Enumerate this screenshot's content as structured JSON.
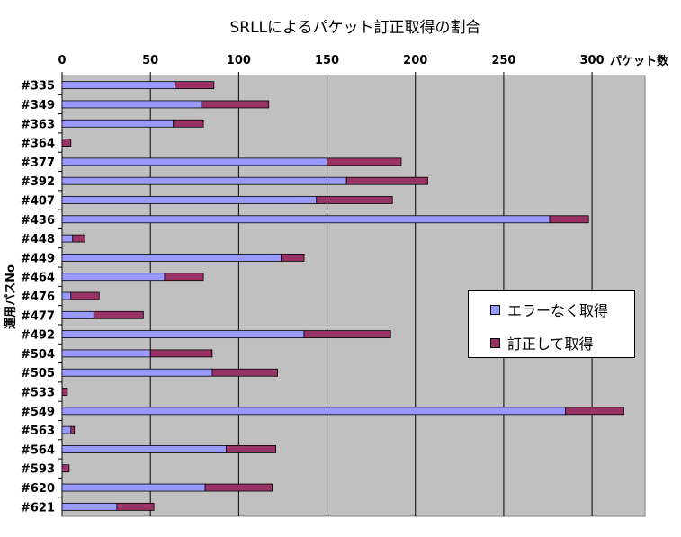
{
  "chart_data": {
    "type": "bar",
    "orientation": "horizontal",
    "stacked": true,
    "title": "SRLLによるパケット訂正取得の割合",
    "xlabel": "パケット数",
    "ylabel": "運用パスNo",
    "xlim": [
      0,
      330
    ],
    "x_ticks": [
      0,
      50,
      100,
      150,
      200,
      250,
      300
    ],
    "grid": "vertical",
    "legend_position": "right",
    "plot_background": "#c0c0c0",
    "categories": [
      "#335",
      "#349",
      "#363",
      "#364",
      "#377",
      "#392",
      "#407",
      "#436",
      "#448",
      "#449",
      "#464",
      "#476",
      "#477",
      "#492",
      "#504",
      "#505",
      "#533",
      "#549",
      "#563",
      "#564",
      "#593",
      "#620",
      "#621"
    ],
    "series": [
      {
        "name": "エラーなく取得",
        "color": "#9999ff",
        "values": [
          64,
          79,
          63,
          0,
          150,
          161,
          144,
          276,
          6,
          124,
          58,
          5,
          18,
          137,
          50,
          85,
          0,
          285,
          5,
          93,
          0,
          81,
          31
        ]
      },
      {
        "name": "訂正して取得",
        "color": "#993366",
        "values": [
          22,
          38,
          17,
          5,
          42,
          46,
          43,
          22,
          7,
          13,
          22,
          16,
          28,
          49,
          35,
          37,
          3,
          33,
          2,
          28,
          4,
          38,
          21
        ]
      }
    ]
  }
}
